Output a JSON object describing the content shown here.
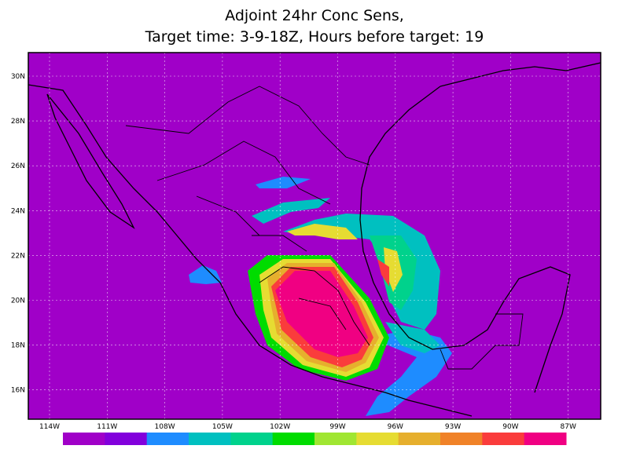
{
  "map": {
    "title": [
      "Adjoint 24hr Conc Sens,",
      "Target time: 3-9-18Z, Hours before target: 19"
    ],
    "lat_labels": [
      "30N",
      "28N",
      "26N",
      "24N",
      "22N",
      "20N",
      "18N",
      "16N"
    ],
    "lon_labels": [
      "114W",
      "111W",
      "108W",
      "105W",
      "102W",
      "99W",
      "96W",
      "93W",
      "90W",
      "87W"
    ],
    "background_color": "#a000c8",
    "colorbar_colors": [
      "#a000c8",
      "#8200dc",
      "#1e8cff",
      "#00c0c0",
      "#00d28c",
      "#00dc00",
      "#a0e632",
      "#e6dc32",
      "#e6af2d",
      "#f08228",
      "#fa3c3c",
      "#f00082"
    ]
  }
}
